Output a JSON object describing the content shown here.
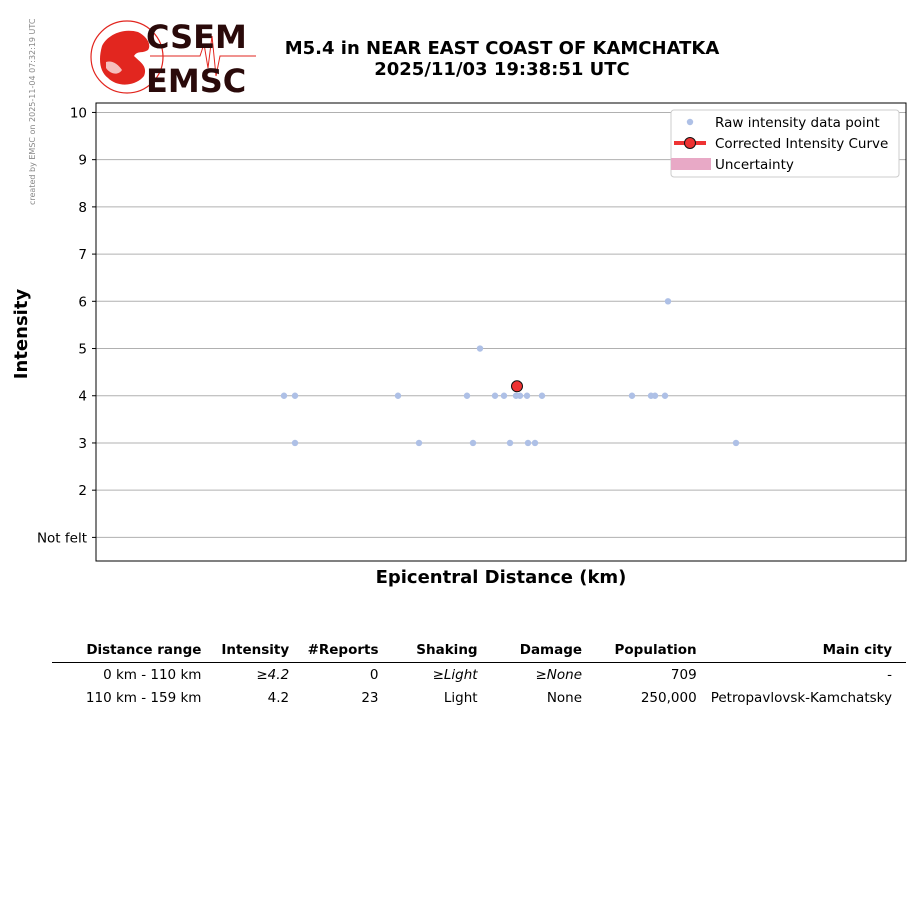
{
  "credit": "created by EMSC on 2025-11-04 07:32:19 UTC",
  "logo": {
    "top_text": "CSEM",
    "bottom_text": "EMSC",
    "brand_color": "#e2261f",
    "text_color": "#2a0a0a"
  },
  "header": {
    "line1": "M5.4 in NEAR EAST COAST OF KAMCHATKA",
    "line2": "2025/11/03 19:38:51 UTC"
  },
  "chart_data": {
    "type": "scatter",
    "xlabel": "Epicentral Distance (km)",
    "ylabel": "Intensity",
    "ylim": [
      0.5,
      10.2
    ],
    "y_ticks": [
      1,
      2,
      3,
      4,
      5,
      6,
      7,
      8,
      9,
      10
    ],
    "y_tick_labels": [
      "Not felt",
      "2",
      "3",
      "4",
      "5",
      "6",
      "7",
      "8",
      "9",
      "10"
    ],
    "x_ticks_shown": false,
    "grid": "horizontal",
    "legend_position": "top-right",
    "legend": [
      "Raw intensity data point",
      "Corrected Intensity Curve",
      "Uncertainty"
    ],
    "colors": {
      "raw": "#aec0e6",
      "curve": "#ee3333",
      "marker_edge": "#111111",
      "uncertainty": "#e8a9c6",
      "grid": "#b0b0b0"
    },
    "series": [
      {
        "name": "Raw intensity data point",
        "points": [
          [
            284,
            4
          ],
          [
            295,
            4
          ],
          [
            295,
            3
          ],
          [
            398,
            4
          ],
          [
            419,
            3
          ],
          [
            467,
            4
          ],
          [
            473,
            3
          ],
          [
            480,
            5
          ],
          [
            495,
            4
          ],
          [
            504,
            4
          ],
          [
            510,
            3
          ],
          [
            516,
            4
          ],
          [
            520,
            4
          ],
          [
            527,
            4
          ],
          [
            528,
            3
          ],
          [
            535,
            3
          ],
          [
            542,
            4
          ],
          [
            632,
            4
          ],
          [
            651,
            4
          ],
          [
            655,
            4
          ],
          [
            665,
            4
          ],
          [
            668,
            6
          ],
          [
            736,
            3
          ]
        ]
      },
      {
        "name": "Corrected Intensity Curve",
        "points": [
          [
            517,
            4.2
          ]
        ]
      }
    ]
  },
  "table": {
    "headers": [
      "Distance range",
      "Intensity",
      "#Reports",
      "Shaking",
      "Damage",
      "Population",
      "Main city"
    ],
    "rows": [
      {
        "range": "0 km -  110 km",
        "intensity": "≥4.2",
        "reports": "0",
        "shaking": "≥Light",
        "damage": "≥None",
        "population": "709",
        "city": "-"
      },
      {
        "range": "110 km -  159 km",
        "intensity": "4.2",
        "reports": "23",
        "shaking": "Light",
        "damage": "None",
        "population": "250,000",
        "city": "Petropavlovsk-Kamchatsky"
      }
    ]
  }
}
